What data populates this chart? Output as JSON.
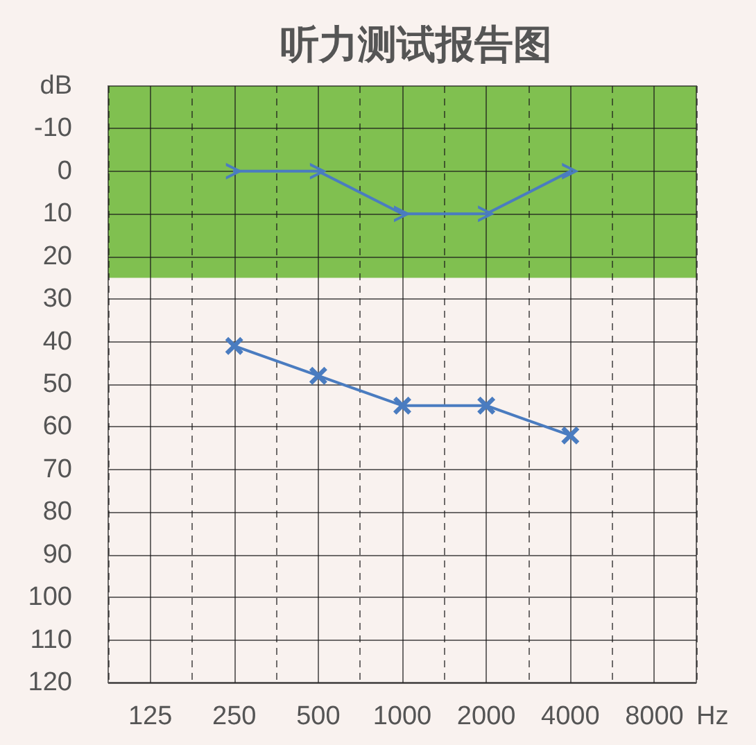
{
  "chart_data": {
    "type": "line",
    "title": "听力测试报告图",
    "xlabel": "Hz",
    "ylabel": "dB",
    "categories": [
      "125",
      "250",
      "500",
      "1000",
      "2000",
      "4000",
      "8000"
    ],
    "series": [
      {
        "color": "#4a7cc0",
        "marker": "triangle",
        "values": [
          null,
          0,
          0,
          10,
          10,
          0,
          null
        ]
      },
      {
        "color": "#4a7cc0",
        "marker": "cross",
        "values": [
          null,
          41,
          48,
          55,
          55,
          62,
          null
        ]
      }
    ],
    "ylim": [
      120,
      -20
    ],
    "yticks": [
      -10,
      0,
      10,
      20,
      30,
      40,
      50,
      60,
      70,
      80,
      90,
      100,
      110,
      120
    ],
    "grid": true,
    "line_style": "solid",
    "bands": [
      {
        "axis": "y",
        "from": -20,
        "to": 25,
        "color": "#80c050"
      }
    ]
  }
}
